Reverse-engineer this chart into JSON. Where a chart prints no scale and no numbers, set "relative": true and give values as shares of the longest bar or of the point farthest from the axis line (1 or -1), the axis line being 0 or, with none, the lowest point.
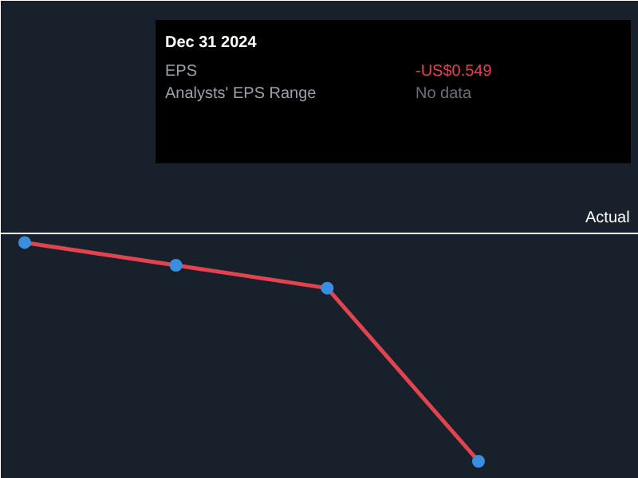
{
  "chart_data": {
    "type": "line",
    "relative": true,
    "categories": [
      null,
      null,
      null,
      null
    ],
    "series": [
      {
        "color": "#e0444f",
        "values": [
          -0.04,
          -0.14,
          -0.24,
          -1
        ]
      }
    ],
    "marker": "circle",
    "annotations": [
      "Actual",
      "Dec 31 2024",
      "EPS",
      "-US$0.549",
      "Analysts' EPS Range",
      "No data"
    ]
  }
}
